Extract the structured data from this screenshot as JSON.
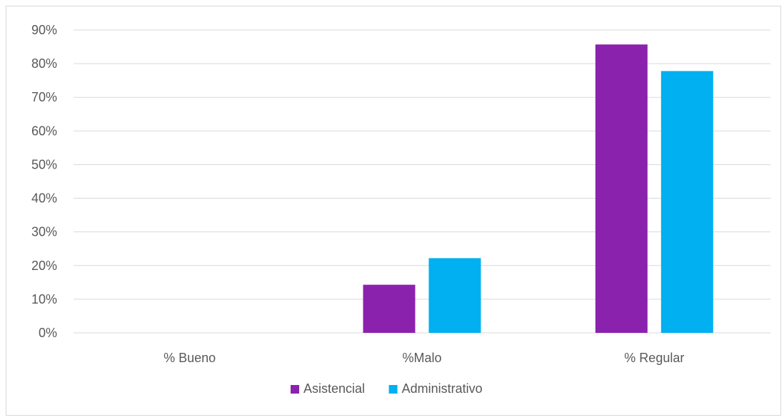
{
  "chart_data": {
    "type": "bar",
    "categories": [
      "% Bueno",
      "%Malo",
      "% Regular"
    ],
    "series": [
      {
        "name": "Asistencial",
        "values": [
          0,
          14.3,
          85.7
        ]
      },
      {
        "name": "Administrativo",
        "values": [
          0,
          22.2,
          77.8
        ]
      }
    ],
    "ylim": [
      0,
      90
    ],
    "y_ticks": [
      0,
      10,
      20,
      30,
      40,
      50,
      60,
      70,
      80,
      90
    ],
    "y_tick_labels": [
      "0%",
      "10%",
      "20%",
      "30%",
      "40%",
      "50%",
      "60%",
      "70%",
      "80%",
      "90%"
    ],
    "grid": true,
    "legend_position": "bottom",
    "colors": {
      "Asistencial": "#8B22AE",
      "Administrativo": "#00B0F0",
      "gridline": "#d9d9d9",
      "text": "#595959"
    }
  }
}
